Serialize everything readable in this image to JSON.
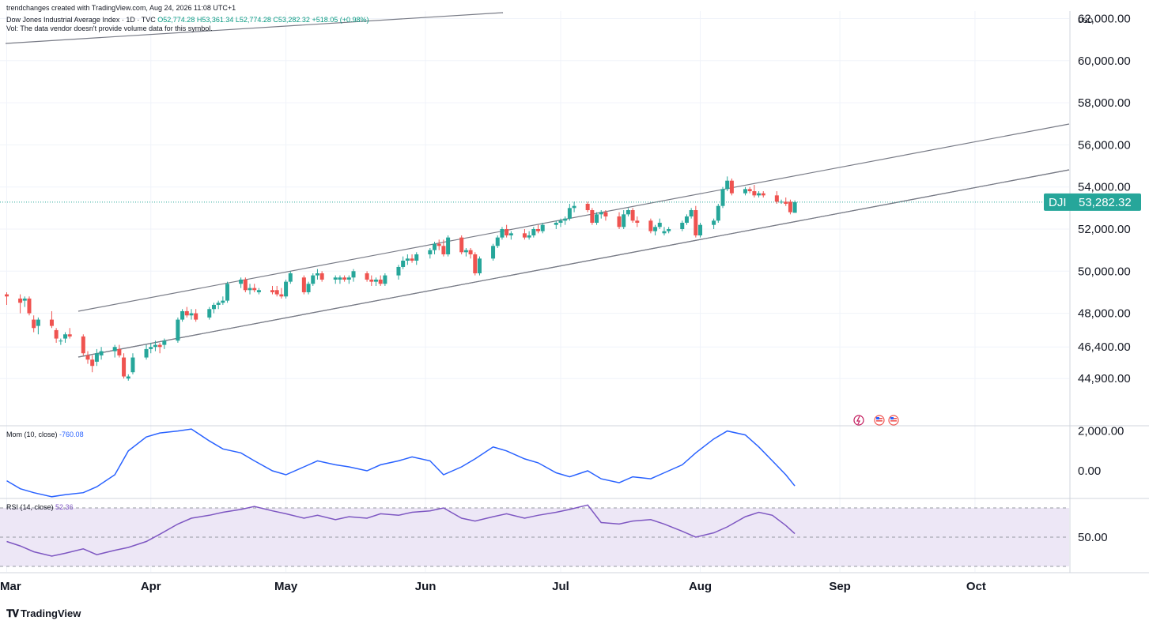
{
  "header": {
    "credit": "trendchanges created with TradingView.com, Aug 24, 2026 11:08 UTC+1",
    "symbol_line": "Dow Jones Industrial Average Index · 1D · TVC",
    "ohlc": "O52,774.28 H53,361.34 L52,774.28 C53,282.32 +518.05 (+0.98%)",
    "vol_note": "Vol: The data vendor doesn't provide volume data for this symbol."
  },
  "price_axis": {
    "currency": "USD",
    "ticks": [
      "62,000.00",
      "60,000.00",
      "58,000.00",
      "56,000.00",
      "54,000.00",
      "52,000.00",
      "50,000.00",
      "48,000.00",
      "46,400.00",
      "44,900.00"
    ],
    "tick_values": [
      62000,
      60000,
      58000,
      56000,
      54000,
      52000,
      50000,
      48000,
      46400,
      44900
    ]
  },
  "last_price": {
    "symbol": "DJI",
    "value": "53,282.32",
    "num": 53282.32
  },
  "time_axis": {
    "labels": [
      "Mar",
      "Apr",
      "May",
      "Jun",
      "Jul",
      "Aug",
      "Sep",
      "Oct"
    ],
    "label_days": [
      0,
      32,
      62,
      93,
      123,
      154,
      185,
      215
    ]
  },
  "momentum": {
    "label": "Mom (10, close)",
    "value": "-760.08",
    "ticks": [
      "2,000.00",
      "0.00"
    ],
    "tick_values": [
      2000,
      0
    ]
  },
  "rsi": {
    "label": "RSI (14, close)",
    "value": "52.36",
    "ticks": [
      "50.00"
    ],
    "tick_values": [
      50
    ],
    "band": [
      30,
      70
    ]
  },
  "brand": {
    "name": "TradingView",
    "logo": "tradingview-logo-icon"
  },
  "event_icons": [
    "dividend-flash-icon",
    "us-flag-icon",
    "us-flag-icon"
  ],
  "colors": {
    "up": "#26a69a",
    "down": "#ef5350",
    "momentum": "#2962ff",
    "rsi": "#7e57c2",
    "rsi_band": "#ede7f6",
    "channel": "#787b86",
    "grid": "#f0f3fa"
  },
  "chart_data": {
    "type": "candlestick",
    "symbol": "Dow Jones Industrial Average Index",
    "interval": "1D",
    "x_unit": "days since Mar 1, 2026",
    "candles": [
      {
        "x": 0,
        "o": 48900,
        "h": 49000,
        "l": 48400,
        "c": 48800
      },
      {
        "x": 3,
        "o": 48700,
        "h": 48900,
        "l": 48000,
        "c": 48500
      },
      {
        "x": 4,
        "o": 48600,
        "h": 48800,
        "l": 48300,
        "c": 48700
      },
      {
        "x": 5,
        "o": 48700,
        "h": 48800,
        "l": 47900,
        "c": 48000
      },
      {
        "x": 6,
        "o": 47700,
        "h": 47900,
        "l": 47100,
        "c": 47300
      },
      {
        "x": 7,
        "o": 47400,
        "h": 47800,
        "l": 47000,
        "c": 47700
      },
      {
        "x": 10,
        "o": 47700,
        "h": 48100,
        "l": 47300,
        "c": 47400
      },
      {
        "x": 11,
        "o": 47200,
        "h": 47300,
        "l": 46600,
        "c": 46800
      },
      {
        "x": 12,
        "o": 46700,
        "h": 46800,
        "l": 46500,
        "c": 46700
      },
      {
        "x": 13,
        "o": 46800,
        "h": 47100,
        "l": 46600,
        "c": 47000
      },
      {
        "x": 14,
        "o": 47000,
        "h": 47300,
        "l": 46800,
        "c": 46900
      },
      {
        "x": 17,
        "o": 46900,
        "h": 47000,
        "l": 46000,
        "c": 46100
      },
      {
        "x": 18,
        "o": 46000,
        "h": 46200,
        "l": 45600,
        "c": 45800
      },
      {
        "x": 19,
        "o": 45800,
        "h": 46000,
        "l": 45200,
        "c": 45500
      },
      {
        "x": 20,
        "o": 45700,
        "h": 46300,
        "l": 45500,
        "c": 46100
      },
      {
        "x": 21,
        "o": 46000,
        "h": 46400,
        "l": 45800,
        "c": 46200
      },
      {
        "x": 24,
        "o": 46200,
        "h": 46500,
        "l": 45900,
        "c": 46400
      },
      {
        "x": 25,
        "o": 46300,
        "h": 46500,
        "l": 45900,
        "c": 46000
      },
      {
        "x": 26,
        "o": 45900,
        "h": 46100,
        "l": 44900,
        "c": 45000
      },
      {
        "x": 27,
        "o": 44900,
        "h": 45100,
        "l": 44800,
        "c": 45000
      },
      {
        "x": 28,
        "o": 45200,
        "h": 46100,
        "l": 45100,
        "c": 45900
      },
      {
        "x": 31,
        "o": 45900,
        "h": 46500,
        "l": 45800,
        "c": 46300
      },
      {
        "x": 32,
        "o": 46300,
        "h": 46600,
        "l": 46100,
        "c": 46400
      },
      {
        "x": 33,
        "o": 46400,
        "h": 46700,
        "l": 46200,
        "c": 46500
      },
      {
        "x": 34,
        "o": 46500,
        "h": 46600,
        "l": 46100,
        "c": 46400
      },
      {
        "x": 35,
        "o": 46500,
        "h": 46800,
        "l": 46300,
        "c": 46700
      },
      {
        "x": 38,
        "o": 46700,
        "h": 47800,
        "l": 46600,
        "c": 47700
      },
      {
        "x": 39,
        "o": 47700,
        "h": 48200,
        "l": 47600,
        "c": 48100
      },
      {
        "x": 40,
        "o": 48100,
        "h": 48300,
        "l": 47800,
        "c": 47900
      },
      {
        "x": 41,
        "o": 47900,
        "h": 48200,
        "l": 47700,
        "c": 48000
      },
      {
        "x": 42,
        "o": 48000,
        "h": 48200,
        "l": 47600,
        "c": 47700
      },
      {
        "x": 45,
        "o": 47800,
        "h": 48300,
        "l": 47700,
        "c": 48200
      },
      {
        "x": 46,
        "o": 48200,
        "h": 48500,
        "l": 48000,
        "c": 48400
      },
      {
        "x": 47,
        "o": 48400,
        "h": 48600,
        "l": 48200,
        "c": 48500
      },
      {
        "x": 48,
        "o": 48500,
        "h": 48800,
        "l": 48400,
        "c": 48600
      },
      {
        "x": 49,
        "o": 48600,
        "h": 49500,
        "l": 48500,
        "c": 49400
      },
      {
        "x": 52,
        "o": 49400,
        "h": 49700,
        "l": 49200,
        "c": 49600
      },
      {
        "x": 53,
        "o": 49600,
        "h": 49700,
        "l": 49000,
        "c": 49100
      },
      {
        "x": 54,
        "o": 49100,
        "h": 49400,
        "l": 48900,
        "c": 49200
      },
      {
        "x": 55,
        "o": 49200,
        "h": 49400,
        "l": 49000,
        "c": 49100
      },
      {
        "x": 56,
        "o": 49000,
        "h": 49200,
        "l": 48900,
        "c": 49100
      },
      {
        "x": 59,
        "o": 49100,
        "h": 49300,
        "l": 48900,
        "c": 49000
      },
      {
        "x": 60,
        "o": 49100,
        "h": 49300,
        "l": 48800,
        "c": 48900
      },
      {
        "x": 61,
        "o": 48900,
        "h": 49200,
        "l": 48700,
        "c": 48800
      },
      {
        "x": 62,
        "o": 48800,
        "h": 49600,
        "l": 48700,
        "c": 49500
      },
      {
        "x": 63,
        "o": 49500,
        "h": 50000,
        "l": 49400,
        "c": 49900
      },
      {
        "x": 66,
        "o": 49700,
        "h": 49800,
        "l": 48900,
        "c": 49000
      },
      {
        "x": 67,
        "o": 49000,
        "h": 49500,
        "l": 48900,
        "c": 49400
      },
      {
        "x": 68,
        "o": 49400,
        "h": 49900,
        "l": 49300,
        "c": 49800
      },
      {
        "x": 69,
        "o": 49800,
        "h": 50100,
        "l": 49600,
        "c": 49900
      },
      {
        "x": 70,
        "o": 49900,
        "h": 50000,
        "l": 49500,
        "c": 49600
      },
      {
        "x": 73,
        "o": 49600,
        "h": 49800,
        "l": 49400,
        "c": 49700
      },
      {
        "x": 74,
        "o": 49600,
        "h": 49800,
        "l": 49400,
        "c": 49700
      },
      {
        "x": 75,
        "o": 49700,
        "h": 49800,
        "l": 49500,
        "c": 49600
      },
      {
        "x": 76,
        "o": 49600,
        "h": 49800,
        "l": 49400,
        "c": 49700
      },
      {
        "x": 77,
        "o": 49700,
        "h": 50100,
        "l": 49500,
        "c": 50000
      },
      {
        "x": 80,
        "o": 49900,
        "h": 50000,
        "l": 49500,
        "c": 49600
      },
      {
        "x": 81,
        "o": 49600,
        "h": 49800,
        "l": 49300,
        "c": 49500
      },
      {
        "x": 82,
        "o": 49500,
        "h": 49700,
        "l": 49300,
        "c": 49600
      },
      {
        "x": 83,
        "o": 49600,
        "h": 49800,
        "l": 49300,
        "c": 49400
      },
      {
        "x": 84,
        "o": 49400,
        "h": 49900,
        "l": 49300,
        "c": 49800
      },
      {
        "x": 87,
        "o": 49800,
        "h": 50300,
        "l": 49600,
        "c": 50200
      },
      {
        "x": 88,
        "o": 50200,
        "h": 50700,
        "l": 50100,
        "c": 50500
      },
      {
        "x": 89,
        "o": 50500,
        "h": 50800,
        "l": 50300,
        "c": 50600
      },
      {
        "x": 90,
        "o": 50600,
        "h": 50800,
        "l": 50400,
        "c": 50500
      },
      {
        "x": 91,
        "o": 50500,
        "h": 50900,
        "l": 50300,
        "c": 50800
      },
      {
        "x": 94,
        "o": 50800,
        "h": 51100,
        "l": 50600,
        "c": 51000
      },
      {
        "x": 95,
        "o": 51000,
        "h": 51400,
        "l": 50800,
        "c": 51300
      },
      {
        "x": 96,
        "o": 51300,
        "h": 51500,
        "l": 51000,
        "c": 51200
      },
      {
        "x": 97,
        "o": 51200,
        "h": 51500,
        "l": 50700,
        "c": 50800
      },
      {
        "x": 98,
        "o": 50800,
        "h": 51700,
        "l": 50700,
        "c": 51600
      },
      {
        "x": 101,
        "o": 51600,
        "h": 51700,
        "l": 50800,
        "c": 50900
      },
      {
        "x": 102,
        "o": 50900,
        "h": 51100,
        "l": 50700,
        "c": 51000
      },
      {
        "x": 103,
        "o": 51000,
        "h": 51100,
        "l": 50600,
        "c": 50800
      },
      {
        "x": 104,
        "o": 50800,
        "h": 50900,
        "l": 49800,
        "c": 49900
      },
      {
        "x": 105,
        "o": 49900,
        "h": 50700,
        "l": 49800,
        "c": 50600
      },
      {
        "x": 108,
        "o": 50600,
        "h": 51300,
        "l": 50500,
        "c": 51200
      },
      {
        "x": 109,
        "o": 51200,
        "h": 51700,
        "l": 51100,
        "c": 51600
      },
      {
        "x": 110,
        "o": 51600,
        "h": 52100,
        "l": 51500,
        "c": 52000
      },
      {
        "x": 111,
        "o": 52000,
        "h": 52200,
        "l": 51600,
        "c": 51700
      },
      {
        "x": 112,
        "o": 51700,
        "h": 51900,
        "l": 51500,
        "c": 51800
      },
      {
        "x": 115,
        "o": 51800,
        "h": 52000,
        "l": 51500,
        "c": 51600
      },
      {
        "x": 116,
        "o": 51600,
        "h": 51900,
        "l": 51500,
        "c": 51700
      },
      {
        "x": 117,
        "o": 51700,
        "h": 52100,
        "l": 51600,
        "c": 52000
      },
      {
        "x": 118,
        "o": 52000,
        "h": 52200,
        "l": 51800,
        "c": 51900
      },
      {
        "x": 119,
        "o": 51900,
        "h": 52300,
        "l": 51800,
        "c": 52200
      },
      {
        "x": 122,
        "o": 52200,
        "h": 52400,
        "l": 52000,
        "c": 52300
      },
      {
        "x": 123,
        "o": 52300,
        "h": 52500,
        "l": 52100,
        "c": 52400
      },
      {
        "x": 124,
        "o": 52400,
        "h": 52600,
        "l": 52200,
        "c": 52500
      },
      {
        "x": 125,
        "o": 52500,
        "h": 53200,
        "l": 52400,
        "c": 53000
      },
      {
        "x": 126,
        "o": 53000,
        "h": 53300,
        "l": 52800,
        "c": 53100
      },
      {
        "x": 129,
        "o": 53200,
        "h": 53300,
        "l": 52800,
        "c": 52900
      },
      {
        "x": 130,
        "o": 52900,
        "h": 53000,
        "l": 52200,
        "c": 52300
      },
      {
        "x": 131,
        "o": 52300,
        "h": 52800,
        "l": 52200,
        "c": 52700
      },
      {
        "x": 132,
        "o": 52700,
        "h": 52900,
        "l": 52500,
        "c": 52800
      },
      {
        "x": 133,
        "o": 52800,
        "h": 52900,
        "l": 52400,
        "c": 52600
      },
      {
        "x": 136,
        "o": 52600,
        "h": 52800,
        "l": 52000,
        "c": 52100
      },
      {
        "x": 137,
        "o": 52100,
        "h": 52900,
        "l": 52000,
        "c": 52700
      },
      {
        "x": 138,
        "o": 52700,
        "h": 53000,
        "l": 52600,
        "c": 52900
      },
      {
        "x": 139,
        "o": 52900,
        "h": 53000,
        "l": 52300,
        "c": 52400
      },
      {
        "x": 140,
        "o": 52400,
        "h": 52600,
        "l": 52100,
        "c": 52300
      },
      {
        "x": 143,
        "o": 52400,
        "h": 52500,
        "l": 51800,
        "c": 51900
      },
      {
        "x": 144,
        "o": 51900,
        "h": 52200,
        "l": 51700,
        "c": 52100
      },
      {
        "x": 145,
        "o": 52100,
        "h": 52500,
        "l": 52000,
        "c": 52300
      },
      {
        "x": 146,
        "o": 51800,
        "h": 52100,
        "l": 51700,
        "c": 51900
      },
      {
        "x": 147,
        "o": 51900,
        "h": 52100,
        "l": 51800,
        "c": 52000
      },
      {
        "x": 150,
        "o": 52000,
        "h": 52400,
        "l": 51900,
        "c": 52300
      },
      {
        "x": 151,
        "o": 52300,
        "h": 52700,
        "l": 52200,
        "c": 52600
      },
      {
        "x": 152,
        "o": 52600,
        "h": 53000,
        "l": 52500,
        "c": 52900
      },
      {
        "x": 153,
        "o": 52900,
        "h": 53100,
        "l": 51600,
        "c": 51700
      },
      {
        "x": 154,
        "o": 51700,
        "h": 52300,
        "l": 51600,
        "c": 52200
      },
      {
        "x": 157,
        "o": 52200,
        "h": 52500,
        "l": 52000,
        "c": 52400
      },
      {
        "x": 158,
        "o": 52400,
        "h": 53200,
        "l": 52300,
        "c": 53100
      },
      {
        "x": 159,
        "o": 53100,
        "h": 54000,
        "l": 53000,
        "c": 53900
      },
      {
        "x": 160,
        "o": 53900,
        "h": 54500,
        "l": 53800,
        "c": 54300
      },
      {
        "x": 161,
        "o": 54300,
        "h": 54400,
        "l": 53600,
        "c": 53700
      },
      {
        "x": 164,
        "o": 53700,
        "h": 54000,
        "l": 53600,
        "c": 53900
      },
      {
        "x": 165,
        "o": 53900,
        "h": 54000,
        "l": 53700,
        "c": 53800
      },
      {
        "x": 166,
        "o": 53800,
        "h": 54100,
        "l": 53500,
        "c": 53600
      },
      {
        "x": 167,
        "o": 53600,
        "h": 53800,
        "l": 53500,
        "c": 53700
      },
      {
        "x": 168,
        "o": 53700,
        "h": 53800,
        "l": 53500,
        "c": 53600
      },
      {
        "x": 171,
        "o": 53600,
        "h": 53800,
        "l": 53200,
        "c": 53300
      },
      {
        "x": 172,
        "o": 53300,
        "h": 53400,
        "l": 53200,
        "c": 53300
      },
      {
        "x": 173,
        "o": 53300,
        "h": 53500,
        "l": 53100,
        "c": 53200
      },
      {
        "x": 174,
        "o": 53300,
        "h": 53400,
        "l": 52700,
        "c": 52800
      },
      {
        "x": 175,
        "o": 52774.28,
        "h": 53361.34,
        "l": 52774.28,
        "c": 53282.32
      }
    ],
    "momentum": {
      "x": [
        0,
        3,
        6,
        10,
        13,
        17,
        20,
        24,
        27,
        31,
        34,
        38,
        41,
        45,
        48,
        52,
        55,
        59,
        62,
        66,
        69,
        73,
        76,
        80,
        83,
        87,
        90,
        94,
        97,
        101,
        104,
        108,
        111,
        115,
        118,
        122,
        125,
        129,
        132,
        136,
        139,
        143,
        146,
        150,
        153,
        157,
        160,
        164,
        167,
        170,
        173,
        175
      ],
      "values": [
        -500,
        -900,
        -1100,
        -1300,
        -1200,
        -1100,
        -800,
        -200,
        1000,
        1700,
        1900,
        2000,
        2100,
        1500,
        1100,
        900,
        500,
        0,
        -200,
        200,
        500,
        300,
        200,
        0,
        300,
        500,
        700,
        500,
        -200,
        200,
        600,
        1200,
        1000,
        600,
        400,
        -100,
        -300,
        0,
        -400,
        -600,
        -300,
        -400,
        -100,
        300,
        900,
        1600,
        2000,
        1800,
        1200,
        500,
        -200,
        -760.08
      ]
    },
    "rsi": {
      "x": [
        0,
        3,
        6,
        10,
        13,
        17,
        20,
        24,
        27,
        31,
        34,
        38,
        41,
        45,
        48,
        52,
        55,
        59,
        62,
        66,
        69,
        73,
        76,
        80,
        83,
        87,
        90,
        94,
        97,
        101,
        104,
        108,
        111,
        115,
        118,
        122,
        125,
        129,
        132,
        136,
        139,
        143,
        146,
        150,
        153,
        157,
        160,
        164,
        167,
        170,
        173,
        175
      ],
      "values": [
        47,
        44,
        40,
        37,
        39,
        42,
        38,
        41,
        43,
        47,
        52,
        59,
        63,
        65,
        67,
        69,
        71,
        68,
        66,
        63,
        65,
        62,
        64,
        63,
        66,
        65,
        67,
        68,
        70,
        63,
        61,
        64,
        66,
        63,
        65,
        67,
        69,
        72,
        60,
        59,
        61,
        62,
        59,
        54,
        50,
        53,
        57,
        64,
        67,
        65,
        58,
        52.36
      ]
    }
  }
}
